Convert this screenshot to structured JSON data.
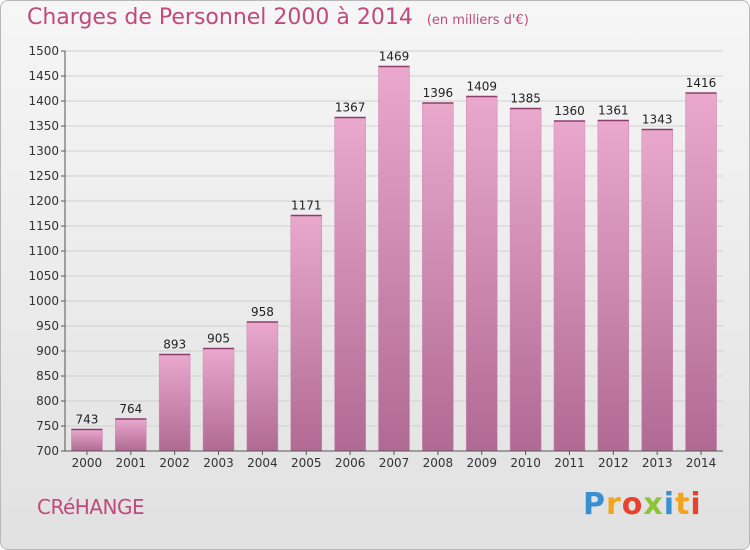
{
  "chart_data": {
    "type": "bar",
    "title": "Charges de Personnel 2000 à 2014",
    "unit_label": "(en milliers d'€)",
    "categories": [
      "2000",
      "2001",
      "2002",
      "2003",
      "2004",
      "2005",
      "2006",
      "2007",
      "2008",
      "2009",
      "2010",
      "2011",
      "2012",
      "2013",
      "2014"
    ],
    "values": [
      743,
      764,
      893,
      905,
      958,
      1171,
      1367,
      1469,
      1396,
      1409,
      1385,
      1360,
      1361,
      1343,
      1416
    ],
    "ylim": [
      700,
      1500
    ],
    "yticks": [
      700,
      750,
      800,
      850,
      900,
      950,
      1000,
      1050,
      1100,
      1150,
      1200,
      1250,
      1300,
      1350,
      1400,
      1450,
      1500
    ],
    "xlabel": "",
    "ylabel": "",
    "grid": true,
    "bar_color_top": "#eaa8cd",
    "bar_color_bottom": "#b06a93",
    "title_color": "#c04a7c"
  },
  "place_name": "CRéHANGE",
  "logo": {
    "letters": [
      {
        "ch": "P",
        "color": "#3a8fd1"
      },
      {
        "ch": "r",
        "color": "#f2a51c"
      },
      {
        "ch": "o",
        "color": "#e8412d"
      },
      {
        "ch": "x",
        "color": "#8fc33a"
      },
      {
        "ch": "i",
        "color": "#3a8fd1"
      },
      {
        "ch": "t",
        "color": "#f2a51c"
      },
      {
        "ch": "i",
        "color": "#e8412d"
      }
    ]
  }
}
